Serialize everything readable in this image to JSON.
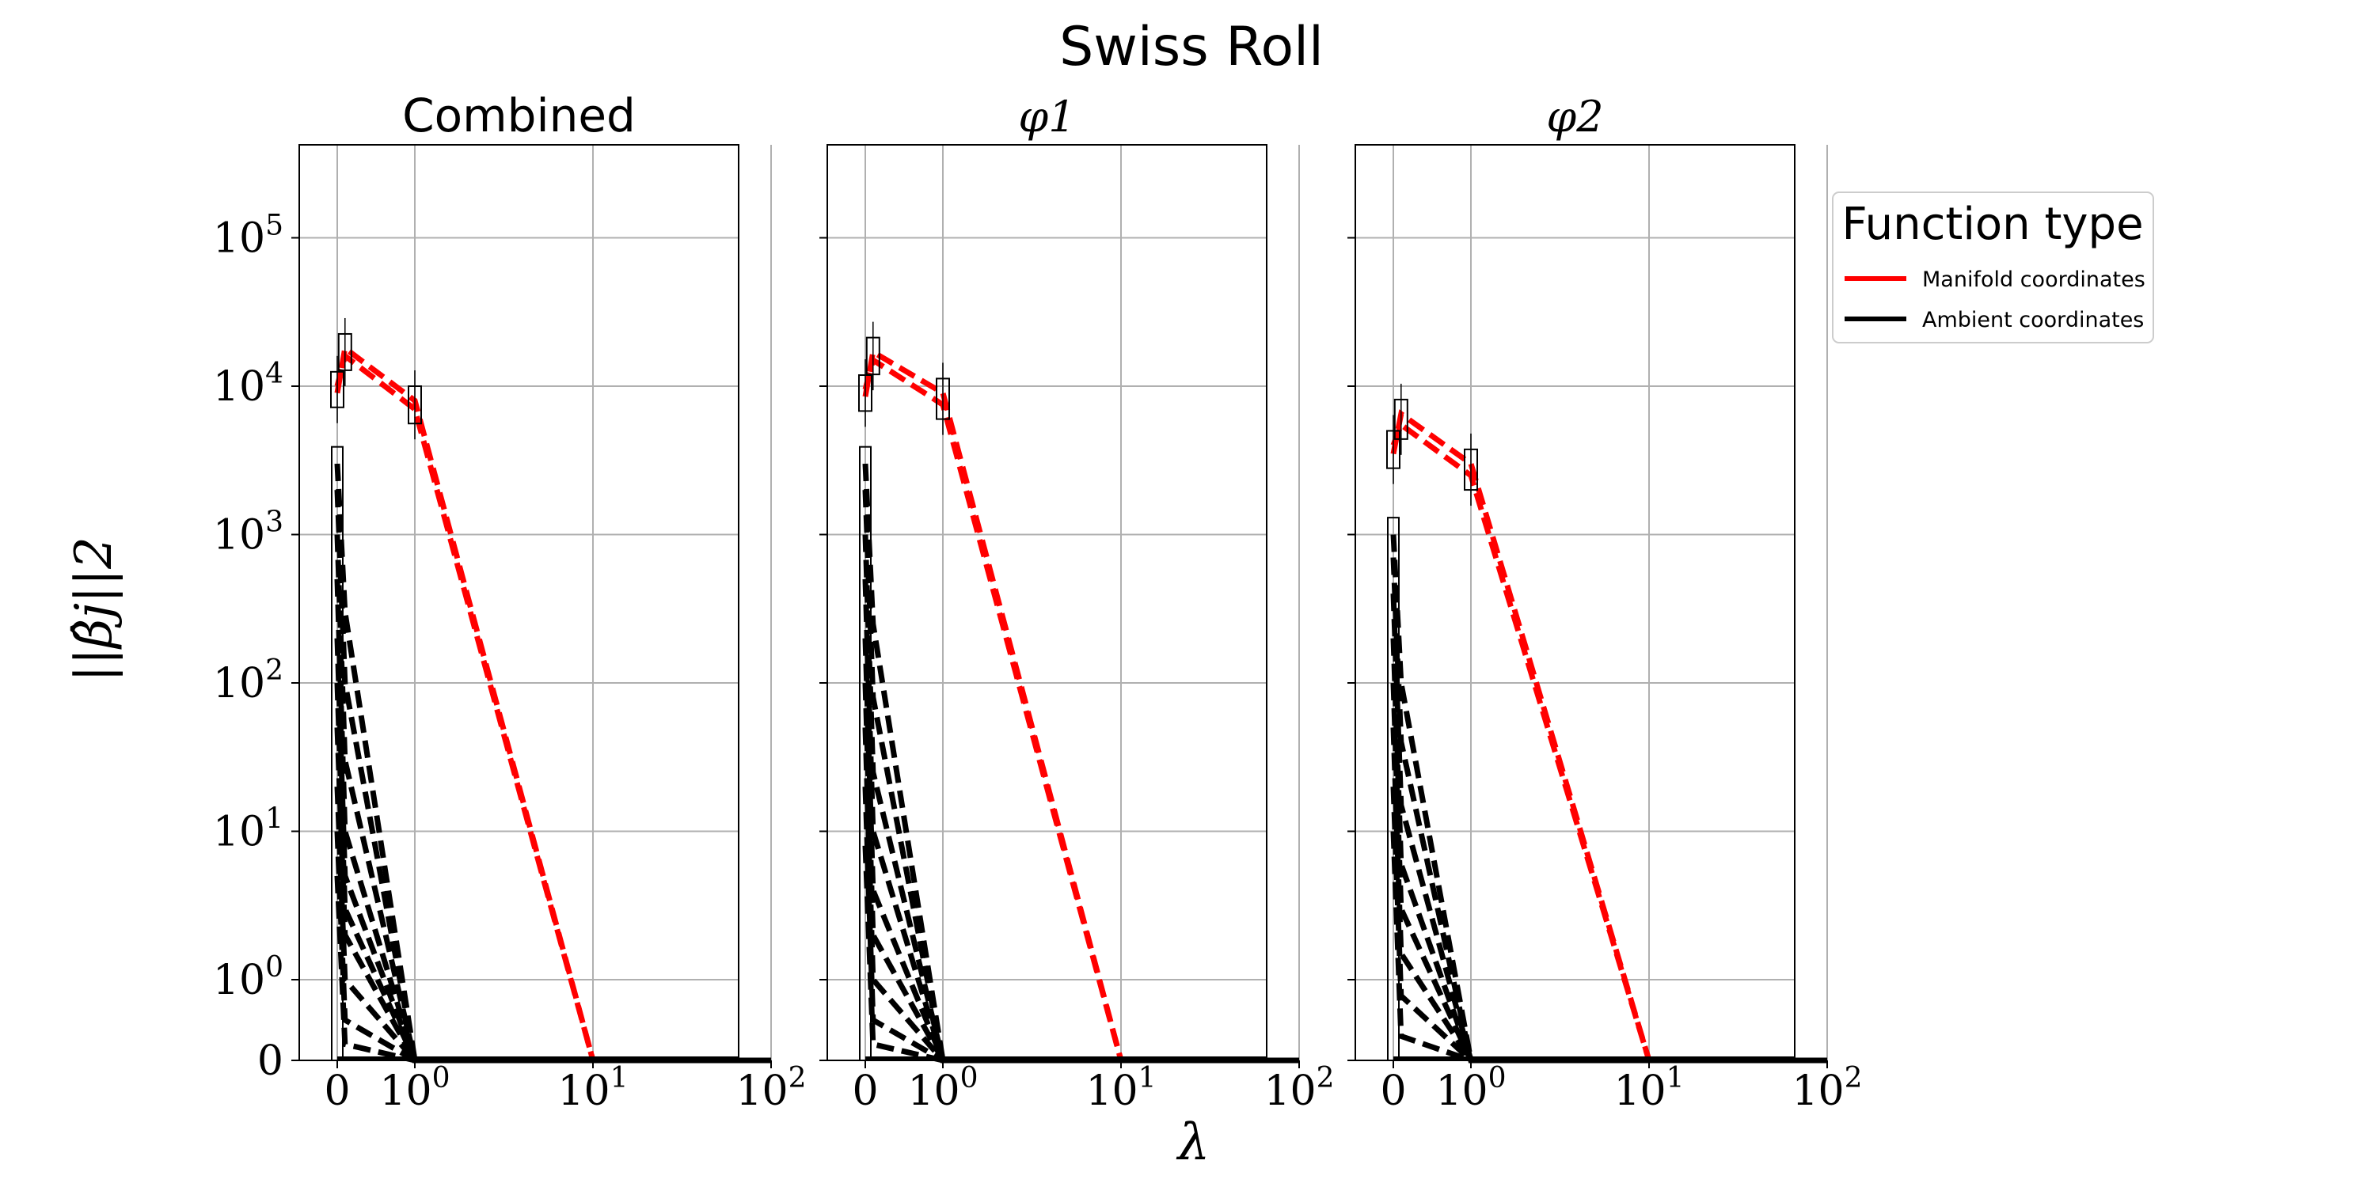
{
  "figure": {
    "title": "Swiss Roll",
    "ylabel": "||β̂j||2",
    "xlabel": "λ"
  },
  "legend": {
    "title": "Function type",
    "placement": "right",
    "entries": [
      {
        "label": "Manifold coordinates",
        "color": "#ff0000"
      },
      {
        "label": "Ambient coordinates",
        "color": "#000000"
      }
    ]
  },
  "colors": {
    "manifold": "#ff0000",
    "ambient": "#000000",
    "grid": "#b0b0b0",
    "frame": "#000000"
  },
  "chart_data": [
    {
      "type": "line",
      "title": "Combined",
      "x_scale": "symlog",
      "y_scale": "symlog",
      "x_ticks": [
        "0",
        "10^0",
        "10^1",
        "10^2"
      ],
      "y_ticks": [
        "0",
        "10^0",
        "10^1",
        "10^2",
        "10^3",
        "10^4",
        "10^5"
      ],
      "xlim": [
        0,
        100
      ],
      "ylim": [
        0,
        250000
      ],
      "grid": true,
      "x": [
        0,
        0.1,
        1,
        10,
        100
      ],
      "series": [
        {
          "group": "manifold",
          "values": [
            9000,
            18000,
            8000,
            0,
            0
          ],
          "box": true
        },
        {
          "group": "manifold",
          "values": [
            10000,
            16000,
            7000,
            0,
            0
          ],
          "box": true
        },
        {
          "group": "ambient",
          "values": [
            3000,
            300,
            0,
            0,
            0
          ]
        },
        {
          "group": "ambient",
          "values": [
            2000,
            100,
            0,
            0,
            0
          ]
        },
        {
          "group": "ambient",
          "values": [
            1000,
            30,
            0,
            0,
            0
          ]
        },
        {
          "group": "ambient",
          "values": [
            500,
            10,
            0,
            0,
            0
          ]
        },
        {
          "group": "ambient",
          "values": [
            200,
            5,
            0,
            0,
            0
          ]
        },
        {
          "group": "ambient",
          "values": [
            100,
            3,
            0,
            0,
            0
          ]
        },
        {
          "group": "ambient",
          "values": [
            50,
            2,
            0,
            0,
            0
          ]
        },
        {
          "group": "ambient",
          "values": [
            20,
            1,
            0,
            0,
            0
          ]
        },
        {
          "group": "ambient",
          "values": [
            10,
            0.5,
            0,
            0,
            0
          ]
        },
        {
          "group": "ambient",
          "values": [
            5,
            0.2,
            0,
            0,
            0
          ]
        }
      ]
    },
    {
      "type": "line",
      "title": "φ1",
      "x_scale": "symlog",
      "y_scale": "symlog",
      "x_ticks": [
        "0",
        "10^0",
        "10^1",
        "10^2"
      ],
      "y_ticks": [],
      "xlim": [
        0,
        100
      ],
      "ylim": [
        0,
        250000
      ],
      "grid": true,
      "x": [
        0,
        0.1,
        1,
        10,
        100
      ],
      "series": [
        {
          "group": "manifold",
          "values": [
            8500,
            17000,
            9000,
            0,
            0
          ],
          "box": true
        },
        {
          "group": "manifold",
          "values": [
            9500,
            15000,
            7500,
            0,
            0
          ],
          "box": true
        },
        {
          "group": "ambient",
          "values": [
            3000,
            250,
            0,
            0,
            0
          ]
        },
        {
          "group": "ambient",
          "values": [
            2000,
            80,
            0,
            0,
            0
          ]
        },
        {
          "group": "ambient",
          "values": [
            1000,
            25,
            0,
            0,
            0
          ]
        },
        {
          "group": "ambient",
          "values": [
            500,
            10,
            0,
            0,
            0
          ]
        },
        {
          "group": "ambient",
          "values": [
            200,
            4,
            0,
            0,
            0
          ]
        },
        {
          "group": "ambient",
          "values": [
            100,
            2,
            0,
            0,
            0
          ]
        },
        {
          "group": "ambient",
          "values": [
            50,
            1,
            0,
            0,
            0
          ]
        },
        {
          "group": "ambient",
          "values": [
            20,
            0.5,
            0,
            0,
            0
          ]
        },
        {
          "group": "ambient",
          "values": [
            8,
            0.2,
            0,
            0,
            0
          ]
        }
      ]
    },
    {
      "type": "line",
      "title": "φ2",
      "x_scale": "symlog",
      "y_scale": "symlog",
      "x_ticks": [
        "0",
        "10^0",
        "10^1",
        "10^2"
      ],
      "y_ticks": [],
      "xlim": [
        0,
        100
      ],
      "ylim": [
        0,
        250000
      ],
      "grid": true,
      "x": [
        0,
        0.1,
        1,
        10,
        100
      ],
      "series": [
        {
          "group": "manifold",
          "values": [
            3500,
            6500,
            3000,
            0,
            0
          ],
          "box": true
        },
        {
          "group": "manifold",
          "values": [
            4000,
            5500,
            2500,
            0,
            0
          ],
          "box": true
        },
        {
          "group": "ambient",
          "values": [
            1000,
            100,
            0,
            0,
            0
          ]
        },
        {
          "group": "ambient",
          "values": [
            700,
            40,
            0,
            0,
            0
          ]
        },
        {
          "group": "ambient",
          "values": [
            400,
            15,
            0,
            0,
            0
          ]
        },
        {
          "group": "ambient",
          "values": [
            200,
            6,
            0,
            0,
            0
          ]
        },
        {
          "group": "ambient",
          "values": [
            100,
            3,
            0,
            0,
            0
          ]
        },
        {
          "group": "ambient",
          "values": [
            50,
            1.5,
            0,
            0,
            0
          ]
        },
        {
          "group": "ambient",
          "values": [
            20,
            0.8,
            0,
            0,
            0
          ]
        },
        {
          "group": "ambient",
          "values": [
            10,
            0.3,
            0,
            0,
            0
          ]
        }
      ]
    }
  ]
}
